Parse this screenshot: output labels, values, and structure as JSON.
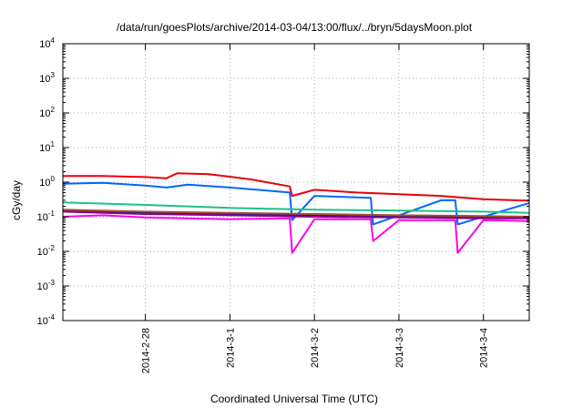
{
  "chart_data": {
    "type": "line",
    "title": "/data/run/goesPlots/archive/2014-03-04/13:00/flux/../bryn/5daysMoon.plot",
    "xlabel": "Coordinated Universal Time (UTC)",
    "ylabel": "cGy/day",
    "y_scale": "log",
    "ylim": [
      0.0001,
      10000
    ],
    "xlim": [
      "2014-02-27T00:34",
      "2014-03-04T13:00"
    ],
    "grid": "dotted",
    "y_ticks": [
      {
        "value": 0.0001,
        "base": "10",
        "exp": "-4"
      },
      {
        "value": 0.001,
        "base": "10",
        "exp": "-3"
      },
      {
        "value": 0.01,
        "base": "10",
        "exp": "-2"
      },
      {
        "value": 0.1,
        "base": "10",
        "exp": "-1"
      },
      {
        "value": 1,
        "base": "10",
        "exp": "0"
      },
      {
        "value": 10,
        "base": "10",
        "exp": "1"
      },
      {
        "value": 100,
        "base": "10",
        "exp": "2"
      },
      {
        "value": 1000,
        "base": "10",
        "exp": "3"
      },
      {
        "value": 10000,
        "base": "10",
        "exp": "4"
      }
    ],
    "x_ticks": [
      {
        "value": "2014-02-28T00:00",
        "label": "2014-2-28"
      },
      {
        "value": "2014-03-01T00:00",
        "label": "2014-3-1"
      },
      {
        "value": "2014-03-02T00:00",
        "label": "2014-3-2"
      },
      {
        "value": "2014-03-03T00:00",
        "label": "2014-3-3"
      },
      {
        "value": "2014-03-04T00:00",
        "label": "2014-3-4"
      }
    ],
    "series": [
      {
        "color": "#e8000b",
        "x": [
          "2014-02-27T00:34",
          "2014-02-27T12:00",
          "2014-02-28T00:00",
          "2014-02-28T06:00",
          "2014-02-28T09:00",
          "2014-02-28T18:00",
          "2014-03-01T06:00",
          "2014-03-01T17:00",
          "2014-03-01T17:40",
          "2014-03-02T00:00",
          "2014-03-02T12:00",
          "2014-03-03T00:00",
          "2014-03-03T12:00",
          "2014-03-04T00:00",
          "2014-03-04T13:00"
        ],
        "values": [
          1.5,
          1.5,
          1.4,
          1.3,
          1.8,
          1.7,
          1.2,
          0.75,
          0.4,
          0.6,
          0.5,
          0.45,
          0.4,
          0.32,
          0.29
        ]
      },
      {
        "color": "#0066ff",
        "x": [
          "2014-02-27T00:34",
          "2014-02-27T12:00",
          "2014-02-28T00:00",
          "2014-02-28T06:00",
          "2014-02-28T12:00",
          "2014-03-01T00:00",
          "2014-03-01T17:00",
          "2014-03-01T17:40",
          "2014-03-02T00:00",
          "2014-03-02T16:00",
          "2014-03-02T16:40",
          "2014-03-03T12:00",
          "2014-03-03T16:00",
          "2014-03-03T16:40",
          "2014-03-04T13:00"
        ],
        "values": [
          0.9,
          0.95,
          0.8,
          0.7,
          0.85,
          0.7,
          0.5,
          0.08,
          0.4,
          0.35,
          0.06,
          0.3,
          0.3,
          0.06,
          0.25
        ]
      },
      {
        "color": "#1fbf8f",
        "x": [
          "2014-02-27T00:34",
          "2014-02-28T00:00",
          "2014-03-01T00:00",
          "2014-03-02T00:00",
          "2014-03-03T00:00",
          "2014-03-04T00:00",
          "2014-03-04T13:00"
        ],
        "values": [
          0.26,
          0.22,
          0.18,
          0.16,
          0.15,
          0.14,
          0.13
        ]
      },
      {
        "color": "#1a1a8a",
        "x": [
          "2014-02-27T00:34",
          "2014-02-28T00:00",
          "2014-03-01T00:00",
          "2014-03-02T00:00",
          "2014-03-03T00:00",
          "2014-03-04T00:00",
          "2014-03-04T13:00"
        ],
        "values": [
          0.15,
          0.13,
          0.12,
          0.11,
          0.105,
          0.1,
          0.1
        ]
      },
      {
        "color": "#a0522d",
        "x": [
          "2014-02-27T00:34",
          "2014-02-28T00:00",
          "2014-03-01T00:00",
          "2014-03-02T00:00",
          "2014-03-03T00:00",
          "2014-03-04T00:00",
          "2014-03-04T13:00"
        ],
        "values": [
          0.16,
          0.14,
          0.13,
          0.12,
          0.11,
          0.105,
          0.1
        ]
      },
      {
        "color": "#8b008b",
        "x": [
          "2014-02-27T00:34",
          "2014-02-28T00:00",
          "2014-03-01T00:00",
          "2014-03-02T00:00",
          "2014-03-03T00:00",
          "2014-03-04T00:00",
          "2014-03-04T13:00"
        ],
        "values": [
          0.14,
          0.12,
          0.11,
          0.1,
          0.095,
          0.09,
          0.09
        ]
      },
      {
        "color": "#ff00e6",
        "x": [
          "2014-02-27T00:34",
          "2014-02-27T12:00",
          "2014-02-28T00:00",
          "2014-03-01T00:00",
          "2014-03-01T17:00",
          "2014-03-01T17:40",
          "2014-03-02T00:00",
          "2014-03-02T16:00",
          "2014-03-02T16:40",
          "2014-03-03T00:00",
          "2014-03-03T16:00",
          "2014-03-03T16:40",
          "2014-03-04T00:00",
          "2014-03-04T13:00"
        ],
        "values": [
          0.1,
          0.11,
          0.095,
          0.085,
          0.09,
          0.009,
          0.085,
          0.085,
          0.02,
          0.08,
          0.08,
          0.009,
          0.08,
          0.075
        ]
      }
    ]
  }
}
